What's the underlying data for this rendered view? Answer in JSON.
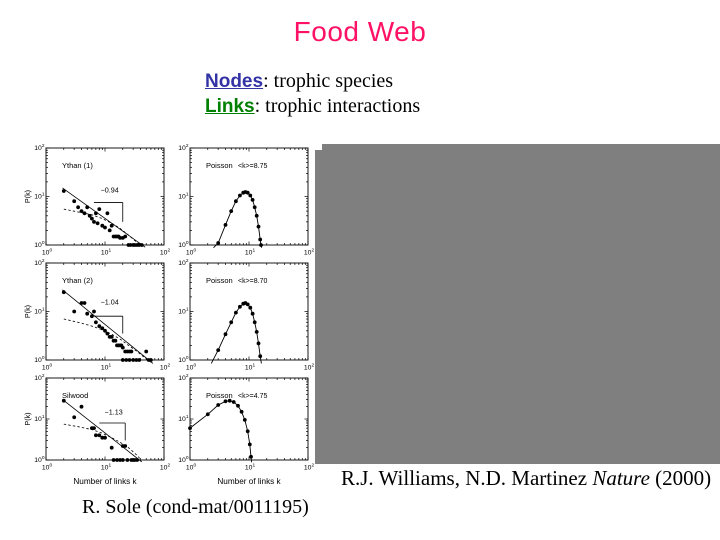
{
  "slide": {
    "title": "Food Web",
    "definitions": [
      {
        "term": "Nodes",
        "rest": ": trophic species"
      },
      {
        "term": "Links",
        "rest": ": trophic interactions"
      }
    ],
    "citation_right": {
      "pre": "R.J. Williams, N.D. Martinez ",
      "italic": "Nature",
      "post": " (2000)"
    },
    "citation_left": "R. Sole (cond-mat/0011195)"
  },
  "colors": {
    "title_pink": "#ff1166",
    "nodes_blue": "#3333a6",
    "links_green": "#008000",
    "gray_box": "#7f7f7f",
    "plot_ink": "#000000"
  },
  "chart_data": [
    {
      "id": "ythan1",
      "type": "scatter",
      "col": 0,
      "row": 0,
      "title": "Ythan (1)",
      "slope_label": "−0.94",
      "ylabel": "P(k)",
      "xscale": "log",
      "yscale": "log",
      "xlim": [
        1,
        100
      ],
      "ylim": [
        1,
        100
      ],
      "ticks_x": [
        1,
        10,
        100
      ],
      "ticks_y": [
        1,
        10,
        100
      ],
      "points": [
        [
          2,
          13
        ],
        [
          3,
          8
        ],
        [
          3.5,
          6
        ],
        [
          4,
          5
        ],
        [
          4.5,
          4.5
        ],
        [
          5,
          6
        ],
        [
          5.5,
          4
        ],
        [
          6,
          3.5
        ],
        [
          6.5,
          3
        ],
        [
          7,
          4.5
        ],
        [
          7.5,
          2.8
        ],
        [
          8,
          5.5
        ],
        [
          9,
          2.5
        ],
        [
          10,
          2.3
        ],
        [
          11,
          4.5
        ],
        [
          12,
          2
        ],
        [
          13,
          2.5
        ],
        [
          14,
          1.5
        ],
        [
          15,
          1.5
        ],
        [
          16,
          1.5
        ],
        [
          17,
          1.5
        ],
        [
          18,
          1.4
        ],
        [
          20,
          1.4
        ],
        [
          22,
          1.5
        ],
        [
          25,
          1
        ],
        [
          27,
          1
        ],
        [
          30,
          1
        ],
        [
          32,
          1
        ],
        [
          35,
          1
        ],
        [
          38,
          1
        ],
        [
          42,
          1
        ]
      ],
      "fit_line": [
        [
          1.9,
          15
        ],
        [
          48,
          0.9
        ]
      ],
      "dotted_curve": [
        [
          2,
          5.5
        ],
        [
          3.5,
          4.8
        ],
        [
          6,
          4.2
        ],
        [
          9,
          3.5
        ],
        [
          13,
          2.8
        ],
        [
          18,
          2.2
        ],
        [
          25,
          1.6
        ],
        [
          33,
          1.2
        ],
        [
          42,
          0.95
        ]
      ],
      "slope_bracket": {
        "x1": 6.5,
        "x2": 20,
        "y_top": 7.5,
        "y_bottom": 3
      },
      "slope_label_pos": [
        12,
        12
      ]
    },
    {
      "id": "poisson1",
      "type": "line+scatter",
      "col": 1,
      "row": 0,
      "title": "Poisson",
      "k_label": "<k>=8.75",
      "xscale": "log",
      "yscale": "log",
      "xlim": [
        1,
        100
      ],
      "ylim": [
        1,
        100
      ],
      "ticks_x": [
        1,
        10,
        100
      ],
      "ticks_y": [
        1,
        10,
        100
      ],
      "connect": true,
      "curve_start": [
        2.5,
        0.88
      ],
      "curve_end": [
        16.4,
        0.88
      ],
      "points": [
        [
          3,
          1.1
        ],
        [
          4,
          2.6
        ],
        [
          5,
          5
        ],
        [
          6,
          8
        ],
        [
          7,
          10.5
        ],
        [
          8,
          12
        ],
        [
          8.7,
          12.4
        ],
        [
          9.5,
          12
        ],
        [
          10.5,
          10.5
        ],
        [
          11.5,
          8.5
        ],
        [
          12.5,
          6
        ],
        [
          13.5,
          4
        ],
        [
          14.5,
          2.4
        ],
        [
          15.5,
          1.3
        ],
        [
          16,
          1
        ]
      ]
    },
    {
      "id": "ythan2",
      "type": "scatter",
      "col": 0,
      "row": 1,
      "title": "Ythan (2)",
      "slope_label": "−1.04",
      "ylabel": "P(k)",
      "xscale": "log",
      "yscale": "log",
      "xlim": [
        1,
        100
      ],
      "ylim": [
        1,
        100
      ],
      "ticks_x": [
        1,
        10,
        100
      ],
      "ticks_y": [
        1,
        10,
        100
      ],
      "points": [
        [
          2,
          25
        ],
        [
          3,
          10
        ],
        [
          4,
          15
        ],
        [
          4.5,
          15
        ],
        [
          5,
          9
        ],
        [
          6,
          8
        ],
        [
          6.5,
          10
        ],
        [
          7,
          6
        ],
        [
          8,
          5
        ],
        [
          9,
          4.5
        ],
        [
          10,
          4
        ],
        [
          11,
          3.5
        ],
        [
          12,
          3
        ],
        [
          13,
          3
        ],
        [
          14,
          2.5
        ],
        [
          15,
          2.5
        ],
        [
          16,
          2
        ],
        [
          17,
          2
        ],
        [
          18,
          2
        ],
        [
          19,
          2
        ],
        [
          20,
          1.8
        ],
        [
          22,
          1.5
        ],
        [
          24,
          1.5
        ],
        [
          26,
          1.5
        ],
        [
          28,
          1.5
        ],
        [
          20,
          1
        ],
        [
          23,
          1
        ],
        [
          26,
          1
        ],
        [
          30,
          1
        ],
        [
          34,
          1
        ],
        [
          38,
          1
        ],
        [
          50,
          1.5
        ],
        [
          55,
          1
        ],
        [
          60,
          1
        ]
      ],
      "fit_line": [
        [
          1.9,
          28
        ],
        [
          65,
          0.85
        ]
      ],
      "dotted_curve": [
        [
          2,
          7
        ],
        [
          3.5,
          6
        ],
        [
          6,
          5
        ],
        [
          9,
          4.2
        ],
        [
          13,
          3.4
        ],
        [
          18,
          2.7
        ],
        [
          25,
          2
        ],
        [
          35,
          1.5
        ],
        [
          48,
          1.1
        ],
        [
          60,
          0.9
        ]
      ],
      "slope_bracket": {
        "x1": 6.5,
        "x2": 20,
        "y_top": 8,
        "y_bottom": 3.5
      },
      "slope_label_pos": [
        12,
        14
      ]
    },
    {
      "id": "poisson2",
      "type": "line+scatter",
      "col": 1,
      "row": 1,
      "title": "Poisson",
      "k_label": "<k>=8.70",
      "xscale": "log",
      "yscale": "log",
      "xlim": [
        1,
        100
      ],
      "ylim": [
        1,
        100
      ],
      "ticks_x": [
        1,
        10,
        100
      ],
      "ticks_y": [
        1,
        10,
        100
      ],
      "connect": true,
      "curve_start": [
        2.3,
        0.85
      ],
      "curve_end": [
        16.2,
        0.85
      ],
      "points": [
        [
          3,
          1.6
        ],
        [
          4,
          3.4
        ],
        [
          5,
          6
        ],
        [
          6,
          9.5
        ],
        [
          7,
          12.5
        ],
        [
          8,
          14.5
        ],
        [
          8.7,
          15
        ],
        [
          9.5,
          14
        ],
        [
          10.5,
          12
        ],
        [
          11.5,
          9
        ],
        [
          12.5,
          6
        ],
        [
          13.5,
          3.8
        ],
        [
          14.5,
          2.2
        ],
        [
          15.5,
          1.2
        ]
      ]
    },
    {
      "id": "silwood",
      "type": "scatter",
      "col": 0,
      "row": 2,
      "title": "Silwood",
      "slope_label": "−1.13",
      "ylabel": "P(k)",
      "xlabel": "Number of links k",
      "xscale": "log",
      "yscale": "log",
      "xlim": [
        1,
        100
      ],
      "ylim": [
        1,
        100
      ],
      "ticks_x": [
        1,
        10,
        100
      ],
      "ticks_y": [
        1,
        10,
        100
      ],
      "points": [
        [
          2,
          28
        ],
        [
          3,
          11
        ],
        [
          4,
          20
        ],
        [
          6,
          6
        ],
        [
          6.5,
          6
        ],
        [
          7,
          4
        ],
        [
          8,
          4
        ],
        [
          9,
          3.5
        ],
        [
          10,
          3.5
        ],
        [
          13,
          2
        ],
        [
          20,
          2.2
        ],
        [
          22,
          2.2
        ],
        [
          14,
          1
        ],
        [
          16,
          1
        ],
        [
          18,
          1
        ],
        [
          20,
          1
        ],
        [
          24,
          1
        ],
        [
          28,
          1
        ],
        [
          30,
          1
        ],
        [
          32,
          1
        ],
        [
          35,
          1
        ]
      ],
      "fit_line": [
        [
          1.9,
          30
        ],
        [
          42,
          0.9
        ]
      ],
      "dotted_curve": [
        [
          2,
          7.5
        ],
        [
          3.5,
          6.5
        ],
        [
          6,
          5.5
        ],
        [
          9,
          4.5
        ],
        [
          13,
          3.5
        ],
        [
          18,
          2.7
        ],
        [
          25,
          2
        ],
        [
          33,
          1.4
        ],
        [
          40,
          1.05
        ]
      ],
      "slope_bracket": {
        "x1": 8,
        "x2": 22,
        "y_top": 8,
        "y_bottom": 3
      },
      "slope_label_pos": [
        14,
        13
      ]
    },
    {
      "id": "poisson3",
      "type": "line+scatter",
      "col": 1,
      "row": 2,
      "title": "Poisson",
      "k_label": "<k>=4.75",
      "xlabel": "Number of links k",
      "xscale": "log",
      "yscale": "log",
      "xlim": [
        1,
        100
      ],
      "ylim": [
        1,
        100
      ],
      "ticks_x": [
        1,
        10,
        100
      ],
      "ticks_y": [
        1,
        10,
        100
      ],
      "connect": true,
      "curve_end": [
        11.1,
        0.88
      ],
      "points": [
        [
          1,
          6
        ],
        [
          2,
          13
        ],
        [
          3,
          22
        ],
        [
          4,
          27
        ],
        [
          4.7,
          28
        ],
        [
          5.5,
          26
        ],
        [
          6.5,
          21
        ],
        [
          7.5,
          15
        ],
        [
          8.5,
          9.5
        ],
        [
          9.5,
          5
        ],
        [
          10.3,
          2.4
        ],
        [
          10.8,
          1.2
        ]
      ]
    }
  ]
}
